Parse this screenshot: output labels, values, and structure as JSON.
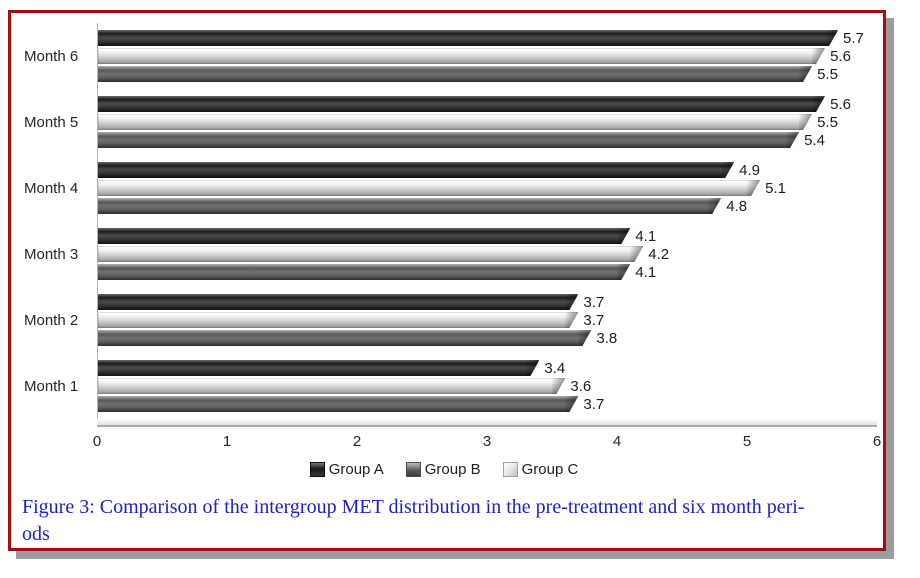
{
  "figure": {
    "caption_line1": "Figure 3: Comparison of the intergroup MET distribution in the pre-treatment and six month peri-",
    "caption_line2": "ods"
  },
  "chart_data": {
    "type": "bar",
    "orientation": "horizontal",
    "title": "",
    "xlabel": "",
    "ylabel": "",
    "xlim": [
      0,
      6
    ],
    "x_ticks": [
      0,
      1,
      2,
      3,
      4,
      5,
      6
    ],
    "grid": false,
    "data_labels": true,
    "legend_position": "bottom",
    "categories": [
      "Month 6",
      "Month 5",
      "Month 4",
      "Month 3",
      "Month 2",
      "Month 1"
    ],
    "series": [
      {
        "name": "Group A",
        "key": "a",
        "color": "#262626",
        "values": [
          5.7,
          5.6,
          4.9,
          4.1,
          3.7,
          3.4
        ]
      },
      {
        "name": "Group B",
        "key": "b",
        "color": "#6e6e6e",
        "values": [
          5.5,
          5.4,
          4.8,
          4.1,
          3.8,
          3.7
        ]
      },
      {
        "name": "Group C",
        "key": "c",
        "color": "#d6d6d6",
        "values": [
          5.6,
          5.5,
          5.1,
          4.2,
          3.7,
          3.6
        ]
      }
    ],
    "cluster_order_top_to_bottom": [
      "Group A",
      "Group C",
      "Group B"
    ],
    "frame_border_color": "#a40e0e",
    "caption_color": "#2020c8"
  }
}
